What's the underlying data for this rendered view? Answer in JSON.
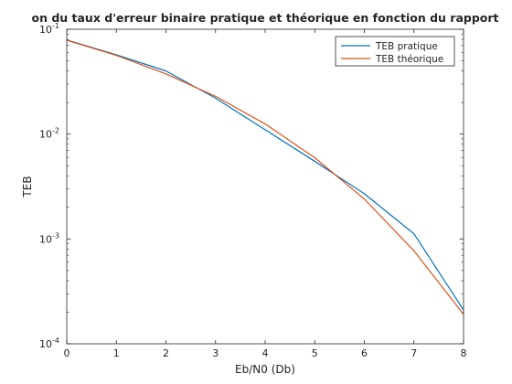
{
  "chart_data": {
    "type": "line",
    "title": "on du taux d'erreur binaire pratique et théorique  en fonction du rapport",
    "xlabel": "Eb/N0 (Db)",
    "ylabel": "TEB",
    "xlim": [
      0,
      8
    ],
    "ylim": [
      0.0001,
      0.1
    ],
    "y_scale": "log",
    "grid": false,
    "legend_position": "top-right",
    "x_ticks": [
      "0",
      "1",
      "2",
      "3",
      "4",
      "5",
      "6",
      "7",
      "8"
    ],
    "y_ticks": [
      {
        "base": "10",
        "exp": "-1"
      },
      {
        "base": "10",
        "exp": "-2"
      },
      {
        "base": "10",
        "exp": "-3"
      },
      {
        "base": "10",
        "exp": "-4"
      }
    ],
    "x": [
      0,
      1,
      2,
      3,
      4,
      5,
      6,
      7,
      8
    ],
    "series": [
      {
        "name": "TEB pratique",
        "color": "#0072bd",
        "values": [
          0.079,
          0.057,
          0.04,
          0.022,
          0.011,
          0.0055,
          0.0027,
          0.00112,
          0.00021
        ]
      },
      {
        "name": "TEB théorique",
        "color": "#d95319",
        "values": [
          0.0786,
          0.0563,
          0.0375,
          0.0229,
          0.0125,
          0.00595,
          0.0024,
          0.00077,
          0.000191
        ]
      }
    ]
  }
}
